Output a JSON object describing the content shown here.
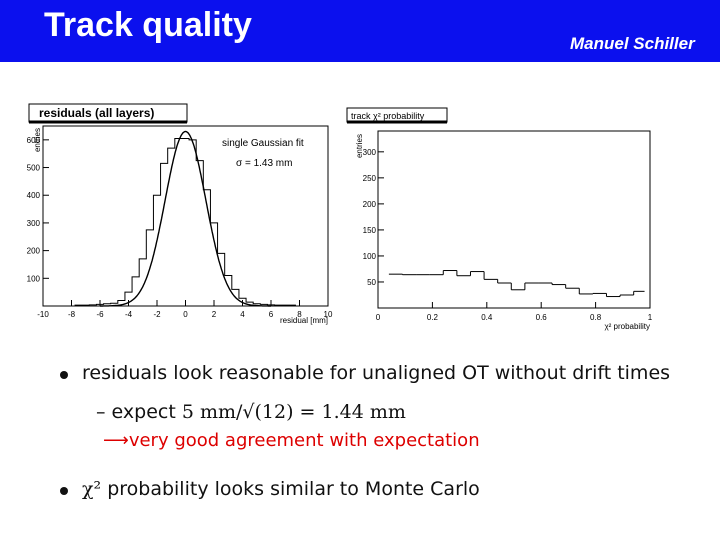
{
  "header": {
    "title": "Track quality",
    "author": "Manuel Schiller",
    "bar_color": "#0b10ee"
  },
  "bullets": {
    "b1": "residuals look reasonable for unaligned OT without drift times",
    "b2_dash": "–",
    "b2_word": "expect",
    "b2_math": "5 mm/√(12) = 1.44 mm",
    "b3_arrow": "⟶",
    "b3_text": "very good agreement with expectation",
    "b4_math": "χ²",
    "b4_text": "probability looks similar to Monte Carlo"
  },
  "chart_data": [
    {
      "type": "histogram",
      "title": "residuals (all layers)",
      "xlabel": "residual [mm]",
      "ylabel": "entries",
      "annotation_fit": "single Gaussian fit",
      "annotation_sigma": "σ = 1.43 mm",
      "xlim": [
        -10,
        10
      ],
      "ylim": [
        0,
        650
      ],
      "x_ticks": [
        "-10",
        "-8",
        "-6",
        "-4",
        "-2",
        "0",
        "2",
        "4",
        "6",
        "8",
        "10"
      ],
      "y_ticks": [
        "100",
        "200",
        "300",
        "400",
        "500",
        "600"
      ],
      "fit": {
        "amplitude": 630,
        "mean": 0.0,
        "sigma": 1.43
      },
      "series": [
        {
          "x": [
            -7.5,
            -7.0,
            -6.5,
            -6.0,
            -5.5,
            -5.0,
            -4.5,
            -4.0,
            -3.5,
            -3.0,
            -2.5,
            -2.0,
            -1.5,
            -1.0,
            -0.5,
            0.0,
            0.5,
            1.0,
            1.5,
            2.0,
            2.5,
            3.0,
            3.5,
            4.0,
            4.5,
            5.0,
            5.5,
            6.0,
            6.5,
            7.0,
            7.5
          ],
          "values": [
            3,
            3,
            4,
            6,
            8,
            10,
            20,
            50,
            105,
            170,
            275,
            400,
            515,
            570,
            605,
            605,
            600,
            525,
            420,
            300,
            190,
            110,
            60,
            28,
            14,
            8,
            6,
            4,
            3,
            3,
            3
          ]
        }
      ]
    },
    {
      "type": "histogram",
      "title": "track χ² probability",
      "xlabel": "χ² probability",
      "ylabel": "entries",
      "xlim": [
        0,
        1
      ],
      "ylim": [
        0,
        340
      ],
      "x_ticks": [
        "0",
        "0.2",
        "0.4",
        "0.6",
        "0.8",
        "1"
      ],
      "y_ticks": [
        "50",
        "100",
        "150",
        "200",
        "250",
        "300"
      ],
      "series": [
        {
          "bin_edges": [
            0.04,
            0.09,
            0.14,
            0.19,
            0.24,
            0.29,
            0.34,
            0.39,
            0.44,
            0.49,
            0.54,
            0.59,
            0.64,
            0.69,
            0.74,
            0.79,
            0.84,
            0.89,
            0.94,
            0.98
          ],
          "values": [
            65,
            64,
            64,
            64,
            72,
            62,
            70,
            55,
            48,
            35,
            48,
            48,
            45,
            38,
            27,
            28,
            22,
            25,
            32
          ]
        }
      ]
    }
  ]
}
